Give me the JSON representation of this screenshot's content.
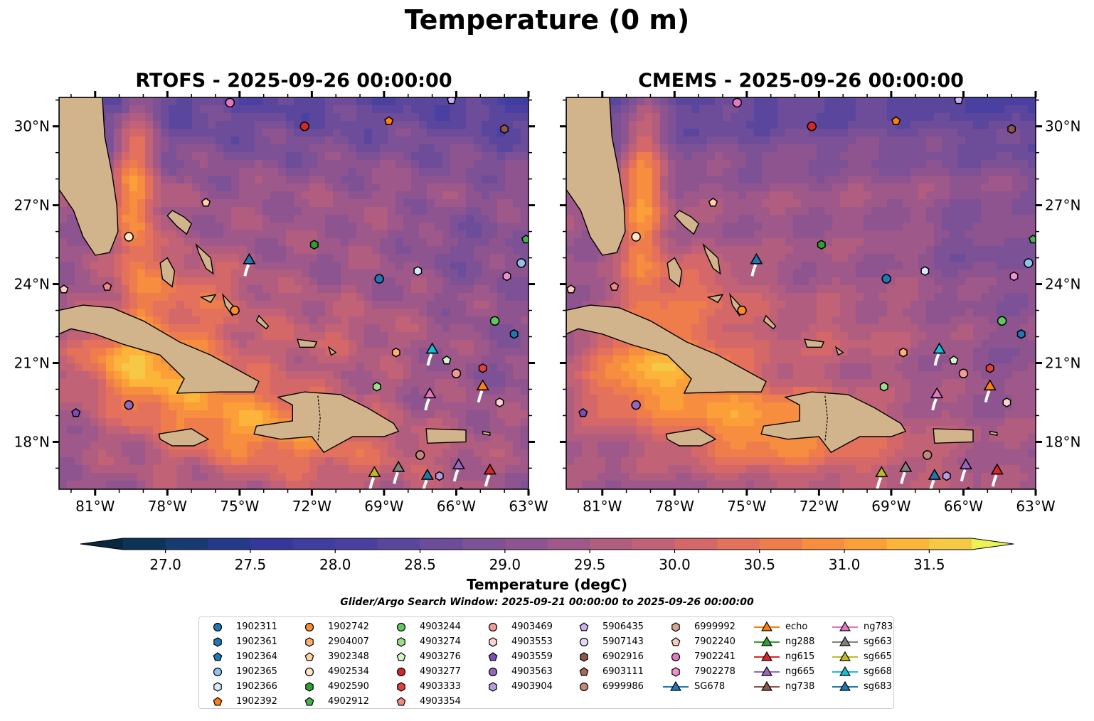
{
  "figure": {
    "title": "Temperature (0 m)",
    "panels": [
      {
        "title": "RTOFS - 2025-09-26 00:00:00",
        "variant": "rtofs"
      },
      {
        "title": "CMEMS - 2025-09-26 00:00:00",
        "variant": "cmems"
      }
    ],
    "colorbar_label": "Temperature (degC)",
    "search_window": "Glider/Argo Search Window: 2025-09-21 00:00:00 to 2025-09-26 00:00:00",
    "land_color": "#d2b48c"
  },
  "chart_data": {
    "type": "heatmap",
    "x_ticks": [
      "81°W",
      "78°W",
      "75°W",
      "72°W",
      "69°W",
      "66°W",
      "63°W"
    ],
    "x_tick_values": [
      -81,
      -78,
      -75,
      -72,
      -69,
      -66,
      -63
    ],
    "y_ticks": [
      "30°N",
      "27°N",
      "24°N",
      "21°N",
      "18°N"
    ],
    "y_tick_values": [
      30,
      27,
      24,
      21,
      18
    ],
    "xlim": [
      -82.5,
      -63
    ],
    "ylim": [
      16.2,
      31.1
    ],
    "colorbar": {
      "levels": [
        26.75,
        27.0,
        27.25,
        27.5,
        27.75,
        28.0,
        28.25,
        28.5,
        28.75,
        29.0,
        29.25,
        29.5,
        29.75,
        30.0,
        30.25,
        30.5,
        30.75,
        31.0,
        31.25,
        31.5,
        31.75
      ],
      "ticks": [
        27.0,
        27.5,
        28.0,
        28.5,
        29.0,
        29.5,
        30.0,
        30.5,
        31.0,
        31.5
      ],
      "tick_labels": [
        "27.0",
        "27.5",
        "28.0",
        "28.5",
        "29.0",
        "29.5",
        "30.0",
        "30.5",
        "31.0",
        "31.5"
      ],
      "colors": [
        "#0b2740",
        "#0d3358",
        "#173a73",
        "#263a8b",
        "#33389a",
        "#3f3da0",
        "#4a40a1",
        "#5b469e",
        "#6d4c9a",
        "#7d5196",
        "#8d5490",
        "#9e5889",
        "#b05d80",
        "#c26276",
        "#d46868",
        "#e3715b",
        "#ef7d4c",
        "#f78d3f",
        "#fb9f38",
        "#fcb43a",
        "#f5c945",
        "#ebdd4e",
        "#ecf155"
      ],
      "extend": "both"
    },
    "legend": {
      "columns": [
        [
          {
            "label": "1902311",
            "marker": "circle",
            "color": "#1f77b4"
          },
          {
            "label": "1902361",
            "marker": "hexagon",
            "color": "#1f77b4"
          },
          {
            "label": "1902364",
            "marker": "pentagon",
            "color": "#1f77b4"
          },
          {
            "label": "1902365",
            "marker": "circle",
            "color": "#8fc3ea"
          },
          {
            "label": "1902366",
            "marker": "hexagon",
            "color": "#d6ebfa"
          },
          {
            "label": "1902392",
            "marker": "pentagon",
            "color": "#ff7f0e"
          }
        ],
        [
          {
            "label": "1902742",
            "marker": "circle",
            "color": "#ff8c2a"
          },
          {
            "label": "2904007",
            "marker": "hexagon",
            "color": "#ffb072"
          },
          {
            "label": "3902348",
            "marker": "pentagon",
            "color": "#ffd2a6"
          },
          {
            "label": "4902534",
            "marker": "circle",
            "color": "#ffe4c6"
          },
          {
            "label": "4902590",
            "marker": "hexagon",
            "color": "#2ca02c"
          },
          {
            "label": "4902912",
            "marker": "pentagon",
            "color": "#4caf50"
          }
        ],
        [
          {
            "label": "4903244",
            "marker": "circle",
            "color": "#5fc95f"
          },
          {
            "label": "4903274",
            "marker": "hexagon",
            "color": "#98df8a"
          },
          {
            "label": "4903276",
            "marker": "pentagon",
            "color": "#d4f5c9"
          },
          {
            "label": "4903277",
            "marker": "circle",
            "color": "#d62728"
          },
          {
            "label": "4903333",
            "marker": "hexagon",
            "color": "#e0403e"
          },
          {
            "label": "4903354",
            "marker": "pentagon",
            "color": "#f08a86"
          }
        ],
        [
          {
            "label": "4903469",
            "marker": "circle",
            "color": "#f29a94"
          },
          {
            "label": "4903553",
            "marker": "hexagon",
            "color": "#fcd3d0"
          },
          {
            "label": "4903559",
            "marker": "pentagon",
            "color": "#7b4fb8"
          },
          {
            "label": "4903563",
            "marker": "circle",
            "color": "#9467bd"
          },
          {
            "label": "4903904",
            "marker": "hexagon",
            "color": "#b79be0"
          }
        ],
        [
          {
            "label": "5906435",
            "marker": "pentagon",
            "color": "#c9b0ee"
          },
          {
            "label": "5907143",
            "marker": "circle",
            "color": "#e5d6fb"
          },
          {
            "label": "6902916",
            "marker": "hexagon",
            "color": "#8c564b"
          },
          {
            "label": "6903111",
            "marker": "pentagon",
            "color": "#a5685a"
          },
          {
            "label": "6999986",
            "marker": "circle",
            "color": "#c08a78"
          }
        ],
        [
          {
            "label": "6999992",
            "marker": "hexagon",
            "color": "#d9a58f"
          },
          {
            "label": "7902240",
            "marker": "pentagon",
            "color": "#f8cdbb"
          },
          {
            "label": "7902241",
            "marker": "circle",
            "color": "#e377c2"
          },
          {
            "label": "7902278",
            "marker": "hexagon",
            "color": "#f08fd2"
          },
          {
            "label": "SG678",
            "marker": "triangle-line",
            "color": "#1f77b4"
          }
        ],
        [
          {
            "label": "echo",
            "marker": "triangle-line",
            "color": "#ff7f0e"
          },
          {
            "label": "ng288",
            "marker": "triangle-line",
            "color": "#2ca02c"
          },
          {
            "label": "ng615",
            "marker": "triangle-line",
            "color": "#d62728"
          },
          {
            "label": "ng665",
            "marker": "triangle-line",
            "color": "#9467bd"
          },
          {
            "label": "ng738",
            "marker": "triangle-line",
            "color": "#8c564b"
          }
        ],
        [
          {
            "label": "ng783",
            "marker": "triangle-line",
            "color": "#e377c2"
          },
          {
            "label": "sg663",
            "marker": "triangle-line",
            "color": "#7f7f7f"
          },
          {
            "label": "sg665",
            "marker": "triangle-line",
            "color": "#bcbd22"
          },
          {
            "label": "sg668",
            "marker": "triangle-line",
            "color": "#17becf"
          },
          {
            "label": "sg683",
            "marker": "triangle-line",
            "color": "#1f77b4"
          }
        ]
      ]
    },
    "stations": [
      {
        "id": "1902311",
        "lon": -69.2,
        "lat": 24.2
      },
      {
        "id": "1902361",
        "lon": -63.6,
        "lat": 22.1
      },
      {
        "id": "1902365",
        "lon": -63.3,
        "lat": 24.8
      },
      {
        "id": "1902366",
        "lon": -67.6,
        "lat": 24.5
      },
      {
        "id": "1902392",
        "lon": -68.8,
        "lat": 30.2
      },
      {
        "id": "1902742",
        "lon": -75.2,
        "lat": 23.0
      },
      {
        "id": "2904007",
        "lon": -68.5,
        "lat": 21.4
      },
      {
        "id": "3902348",
        "lon": -76.4,
        "lat": 27.1
      },
      {
        "id": "4902534",
        "lon": -79.6,
        "lat": 25.8
      },
      {
        "id": "4902590",
        "lon": -71.9,
        "lat": 25.5
      },
      {
        "id": "4902912",
        "lon": -63.1,
        "lat": 25.7
      },
      {
        "id": "4903244",
        "lon": -64.4,
        "lat": 22.6
      },
      {
        "id": "4903274",
        "lon": -69.3,
        "lat": 20.1
      },
      {
        "id": "4903276",
        "lon": -66.4,
        "lat": 21.1
      },
      {
        "id": "4903277",
        "lon": -72.3,
        "lat": 30.0
      },
      {
        "id": "4903333",
        "lon": -64.9,
        "lat": 20.8
      },
      {
        "id": "4903354",
        "lon": -80.5,
        "lat": 23.9
      },
      {
        "id": "4903469",
        "lon": -66.0,
        "lat": 20.6
      },
      {
        "id": "4903553",
        "lon": -64.2,
        "lat": 19.5
      },
      {
        "id": "4903559",
        "lon": -81.8,
        "lat": 19.1
      },
      {
        "id": "4903563",
        "lon": -79.6,
        "lat": 19.4
      },
      {
        "id": "4903904",
        "lon": -66.7,
        "lat": 16.7
      },
      {
        "id": "5906435",
        "lon": -66.2,
        "lat": 31.0
      },
      {
        "id": "6902916",
        "lon": -64.0,
        "lat": 29.9
      },
      {
        "id": "6903111",
        "lon": -65.8,
        "lat": 16.1
      },
      {
        "id": "6999986",
        "lon": -67.5,
        "lat": 17.5
      },
      {
        "id": "7902240",
        "lon": -82.3,
        "lat": 23.8
      },
      {
        "id": "7902241",
        "lon": -75.4,
        "lat": 30.9
      },
      {
        "id": "7902278",
        "lon": -63.9,
        "lat": 24.3
      },
      {
        "id": "SG678",
        "lon": -74.6,
        "lat": 24.9
      },
      {
        "id": "echo",
        "lon": -64.9,
        "lat": 20.1
      },
      {
        "id": "ng615",
        "lon": -64.6,
        "lat": 16.9
      },
      {
        "id": "ng665",
        "lon": -65.9,
        "lat": 17.1
      },
      {
        "id": "ng783",
        "lon": -67.1,
        "lat": 19.8
      },
      {
        "id": "sg663",
        "lon": -68.4,
        "lat": 17.0
      },
      {
        "id": "sg665",
        "lon": -69.4,
        "lat": 16.8
      },
      {
        "id": "sg668",
        "lon": -67.0,
        "lat": 21.5
      },
      {
        "id": "sg683",
        "lon": -67.2,
        "lat": 16.7
      }
    ]
  }
}
